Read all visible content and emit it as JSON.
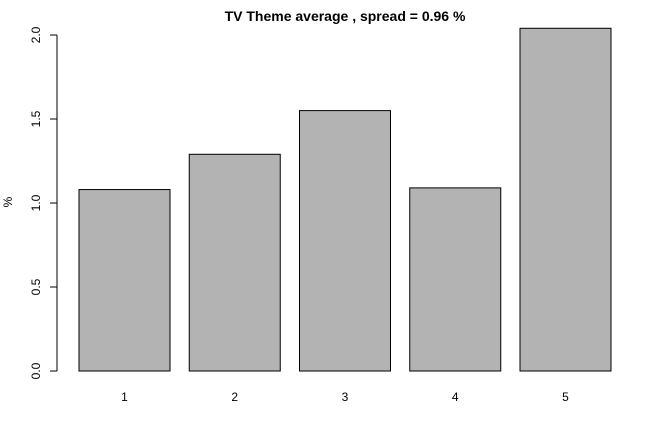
{
  "chart_data": {
    "type": "bar",
    "title": "TV Theme average , spread = 0.96 %",
    "xlabel": "",
    "ylabel": "%",
    "categories": [
      "1",
      "2",
      "3",
      "4",
      "5"
    ],
    "values": [
      1.08,
      1.29,
      1.55,
      1.09,
      2.04
    ],
    "ylim": [
      0,
      2.0
    ],
    "y_ticks": [
      "0.0",
      "0.5",
      "1.0",
      "1.5",
      "2.0"
    ],
    "bar_color": "#b3b3b3",
    "grid": false,
    "legend": "none"
  }
}
